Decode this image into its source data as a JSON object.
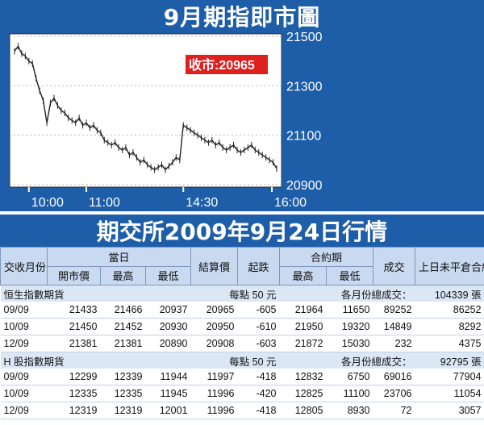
{
  "chart_title": "9月期指即市圖",
  "chart_data": {
    "type": "line",
    "close_label": "收市:20965",
    "x_ticks": [
      "10:00",
      "11:00",
      "14:30",
      "16:00"
    ],
    "y_ticks": [
      21500,
      21300,
      21100,
      20900
    ],
    "ylim": [
      20890,
      21510
    ],
    "series": [
      {
        "values": [
          21440,
          21460,
          21430,
          21420,
          21400,
          21390,
          21330,
          21280,
          21240,
          21150,
          21230,
          21250,
          21220,
          21200,
          21190,
          21170,
          21160,
          21150,
          21170,
          21140,
          21150,
          21130,
          21140,
          21120,
          21110,
          21080,
          21070,
          21060,
          21070,
          21050,
          21040,
          21050,
          21020,
          21030,
          21010,
          20990,
          21000,
          20980,
          20970,
          20960,
          20970,
          20980,
          20960,
          20975,
          20990,
          21010,
          21000,
          21140,
          21130,
          21120,
          21110,
          21100,
          21090,
          21080,
          21070,
          21080,
          21060,
          21070,
          21050,
          21040,
          21050,
          21060,
          21040,
          21030,
          21040,
          21050,
          21060,
          21040,
          21030,
          21020,
          21010,
          21000,
          20990,
          20965
        ]
      }
    ]
  },
  "market_title": "期交所2009年9月24日行情",
  "headers": {
    "month": "交收月份",
    "today": "當日",
    "open": "開市價",
    "high": "最高",
    "low": "最低",
    "settle": "結算價",
    "change": "起跌",
    "contract_period": "合約期",
    "cp_high": "最高",
    "cp_low": "最低",
    "volume": "成交",
    "oi": "上日未平倉合約(張)"
  },
  "sections": [
    {
      "name": "恒生指數期貨",
      "per_point": "每點 50 元",
      "total_label": "各月份總成交：",
      "total_value": "104339 張",
      "rows": [
        [
          "09/09",
          "21433",
          "21466",
          "20937",
          "20965",
          "-605",
          "21964",
          "11650",
          "89252",
          "86252"
        ],
        [
          "10/09",
          "21450",
          "21452",
          "20930",
          "20950",
          "-610",
          "21950",
          "19320",
          "14849",
          "8292"
        ],
        [
          "12/09",
          "21381",
          "21381",
          "20890",
          "20908",
          "-603",
          "21872",
          "15030",
          "232",
          "4375"
        ]
      ]
    },
    {
      "name": "H 股指數期貨",
      "per_point": "每點 50 元",
      "total_label": "各月份總成交：",
      "total_value": "92795 張",
      "rows": [
        [
          "09/09",
          "12299",
          "12339",
          "11944",
          "11997",
          "-418",
          "12832",
          "6750",
          "69016",
          "77904"
        ],
        [
          "10/09",
          "12335",
          "12335",
          "11945",
          "11996",
          "-420",
          "12825",
          "11100",
          "23706",
          "11054"
        ],
        [
          "12/09",
          "12319",
          "12319",
          "12001",
          "11996",
          "-418",
          "12805",
          "8930",
          "72",
          "3057"
        ]
      ]
    }
  ]
}
